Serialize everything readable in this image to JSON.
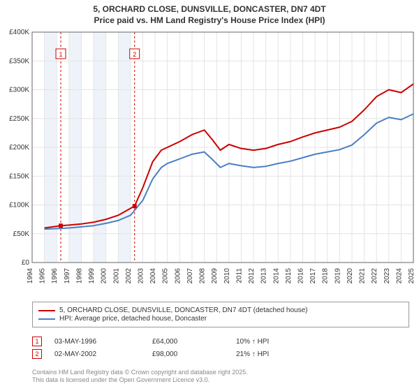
{
  "title_line1": "5, ORCHARD CLOSE, DUNSVILLE, DONCASTER, DN7 4DT",
  "title_line2": "Price paid vs. HM Land Registry's House Price Index (HPI)",
  "chart": {
    "type": "line",
    "background_color": "#ffffff",
    "plot_border_color": "#666666",
    "grid_color": "#e4e4e4",
    "shade_band_color": "#eef3f9",
    "ylim": [
      0,
      400000
    ],
    "ytick_step": 50000,
    "ytick_labels": [
      "£0",
      "£50K",
      "£100K",
      "£150K",
      "£200K",
      "£250K",
      "£300K",
      "£350K",
      "£400K"
    ],
    "ytick_fontsize": 10,
    "xtick_years": [
      1994,
      1995,
      1996,
      1997,
      1998,
      1999,
      2000,
      2001,
      2002,
      2003,
      2004,
      2005,
      2006,
      2007,
      2008,
      2009,
      2010,
      2011,
      2012,
      2013,
      2014,
      2015,
      2016,
      2017,
      2018,
      2019,
      2020,
      2021,
      2022,
      2023,
      2024,
      2025
    ],
    "xtick_fontsize": 10,
    "xtick_rotation": -90,
    "shade_year_pairs": [
      [
        1995,
        1996
      ],
      [
        1997,
        1998
      ],
      [
        1999,
        2000
      ],
      [
        2001,
        2002
      ]
    ],
    "series": [
      {
        "name": "5, ORCHARD CLOSE, DUNSVILLE, DONCASTER, DN7 4DT (detached house)",
        "color": "#cc0000",
        "line_width": 2,
        "points": [
          [
            1995.0,
            60000
          ],
          [
            1996.33,
            64000
          ],
          [
            1997.0,
            65000
          ],
          [
            1998.0,
            67000
          ],
          [
            1999.0,
            70000
          ],
          [
            2000.0,
            75000
          ],
          [
            2001.0,
            82000
          ],
          [
            2002.33,
            98000
          ],
          [
            2003.0,
            130000
          ],
          [
            2003.8,
            175000
          ],
          [
            2004.5,
            195000
          ],
          [
            2005.0,
            200000
          ],
          [
            2006.0,
            210000
          ],
          [
            2007.0,
            222000
          ],
          [
            2008.0,
            230000
          ],
          [
            2008.7,
            212000
          ],
          [
            2009.3,
            195000
          ],
          [
            2010.0,
            205000
          ],
          [
            2011.0,
            198000
          ],
          [
            2012.0,
            195000
          ],
          [
            2013.0,
            198000
          ],
          [
            2014.0,
            205000
          ],
          [
            2015.0,
            210000
          ],
          [
            2016.0,
            218000
          ],
          [
            2017.0,
            225000
          ],
          [
            2018.0,
            230000
          ],
          [
            2019.0,
            235000
          ],
          [
            2020.0,
            245000
          ],
          [
            2021.0,
            265000
          ],
          [
            2022.0,
            288000
          ],
          [
            2023.0,
            300000
          ],
          [
            2024.0,
            295000
          ],
          [
            2025.0,
            310000
          ]
        ]
      },
      {
        "name": "HPI: Average price, detached house, Doncaster",
        "color": "#4a7fc4",
        "line_width": 2,
        "points": [
          [
            1995.0,
            58000
          ],
          [
            1996.0,
            59000
          ],
          [
            1997.0,
            60000
          ],
          [
            1998.0,
            62000
          ],
          [
            1999.0,
            64000
          ],
          [
            2000.0,
            68000
          ],
          [
            2001.0,
            73000
          ],
          [
            2002.0,
            82000
          ],
          [
            2003.0,
            108000
          ],
          [
            2003.8,
            145000
          ],
          [
            2004.5,
            165000
          ],
          [
            2005.0,
            172000
          ],
          [
            2006.0,
            180000
          ],
          [
            2007.0,
            188000
          ],
          [
            2008.0,
            192000
          ],
          [
            2008.7,
            178000
          ],
          [
            2009.3,
            165000
          ],
          [
            2010.0,
            172000
          ],
          [
            2011.0,
            168000
          ],
          [
            2012.0,
            165000
          ],
          [
            2013.0,
            167000
          ],
          [
            2014.0,
            172000
          ],
          [
            2015.0,
            176000
          ],
          [
            2016.0,
            182000
          ],
          [
            2017.0,
            188000
          ],
          [
            2018.0,
            192000
          ],
          [
            2019.0,
            196000
          ],
          [
            2020.0,
            204000
          ],
          [
            2021.0,
            222000
          ],
          [
            2022.0,
            242000
          ],
          [
            2023.0,
            252000
          ],
          [
            2024.0,
            248000
          ],
          [
            2025.0,
            258000
          ]
        ]
      }
    ],
    "sale_markers": [
      {
        "label": "1",
        "year": 1996.33,
        "value": 64000,
        "color": "#cc0000"
      },
      {
        "label": "2",
        "year": 2002.33,
        "value": 98000,
        "color": "#cc0000"
      }
    ],
    "sale_marker_line_dash": "3,3"
  },
  "legend": {
    "rows": [
      {
        "color": "#cc0000",
        "label": "5, ORCHARD CLOSE, DUNSVILLE, DONCASTER, DN7 4DT (detached house)"
      },
      {
        "color": "#4a7fc4",
        "label": "HPI: Average price, detached house, Doncaster"
      }
    ]
  },
  "sales": [
    {
      "marker": "1",
      "marker_color": "#cc0000",
      "date": "03-MAY-1996",
      "price": "£64,000",
      "pct": "10% ↑ HPI"
    },
    {
      "marker": "2",
      "marker_color": "#cc0000",
      "date": "02-MAY-2002",
      "price": "£98,000",
      "pct": "21% ↑ HPI"
    }
  ],
  "footer_line1": "Contains HM Land Registry data © Crown copyright and database right 2025.",
  "footer_line2": "This data is licensed under the Open Government Licence v3.0."
}
